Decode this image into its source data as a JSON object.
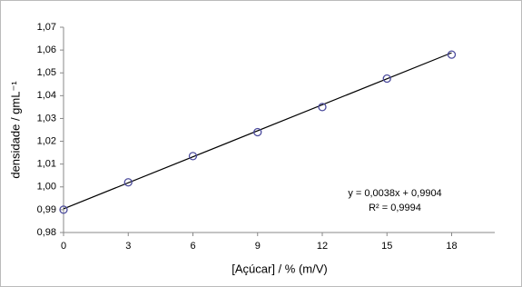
{
  "chart_data": {
    "type": "scatter",
    "xlabel": "[Açúcar] / % (m/V)",
    "ylabel": "densidade / gmL⁻¹",
    "x": [
      0,
      3,
      6,
      9,
      12,
      15,
      18
    ],
    "series": [
      {
        "color": "#4b4b9c",
        "values": [
          0.99,
          1.002,
          1.0135,
          1.024,
          1.035,
          1.0475,
          1.058
        ]
      }
    ],
    "trendline": {
      "color": "#000000",
      "x": [
        0,
        18
      ],
      "y": [
        0.9904,
        1.0588
      ]
    },
    "annotations": [
      "y = 0,0038x + 0,9904",
      "R² = 0,9994"
    ],
    "xlim": [
      0,
      20
    ],
    "xticks": [
      0,
      3,
      6,
      9,
      12,
      15,
      18
    ],
    "ylim": [
      0.98,
      1.07
    ],
    "yticks": [
      {
        "value": 0.98,
        "label": "0,98"
      },
      {
        "value": 0.99,
        "label": "0,99"
      },
      {
        "value": 1.0,
        "label": "1,00"
      },
      {
        "value": 1.01,
        "label": "1,01"
      },
      {
        "value": 1.02,
        "label": "1,02"
      },
      {
        "value": 1.03,
        "label": "1,03"
      },
      {
        "value": 1.04,
        "label": "1,04"
      },
      {
        "value": 1.05,
        "label": "1,05"
      },
      {
        "value": 1.06,
        "label": "1,06"
      },
      {
        "value": 1.07,
        "label": "1,07"
      }
    ],
    "grid": false
  }
}
